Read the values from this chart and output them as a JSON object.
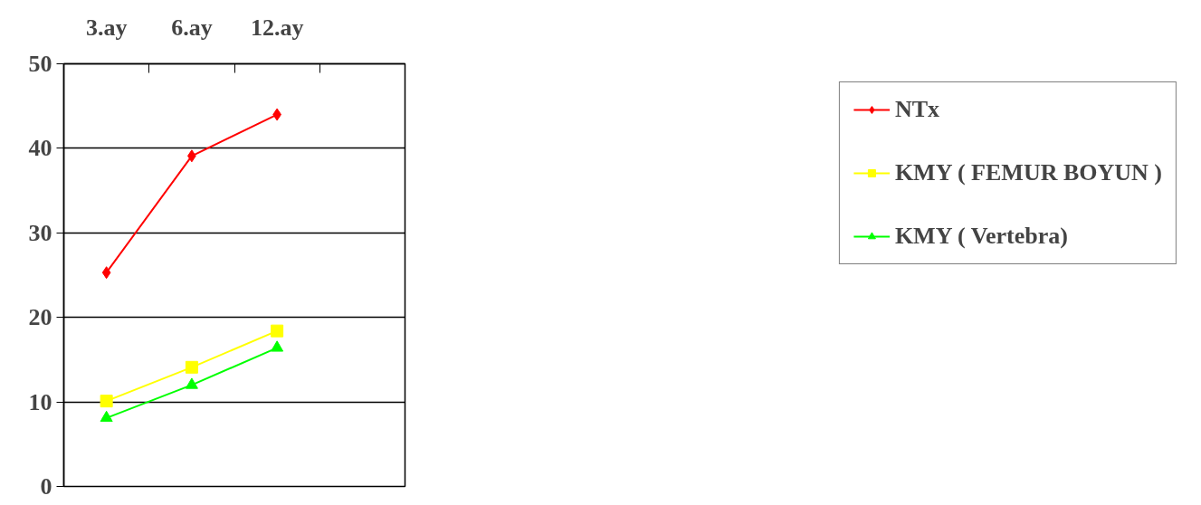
{
  "chart_data": {
    "type": "line",
    "categories": [
      "3.ay",
      "6.ay",
      "12.ay",
      null
    ],
    "series": [
      {
        "name": "NTx",
        "color": "#ff0000",
        "marker": "diamond",
        "values": [
          25.3,
          39.1,
          44.0,
          null
        ]
      },
      {
        "name": "KMY ( FEMUR BOYUN )",
        "color": "#ffff00",
        "marker": "square",
        "values": [
          10.1,
          14.1,
          18.4,
          null
        ]
      },
      {
        "name": "KMY ( Vertebra)",
        "color": "#00ff00",
        "marker": "triangle",
        "values": [
          8.1,
          12.0,
          16.4,
          null
        ]
      }
    ],
    "ylim": [
      0,
      50
    ],
    "yticks": [
      0,
      10,
      20,
      30,
      40,
      50
    ],
    "grid": "y",
    "legend": "right"
  }
}
